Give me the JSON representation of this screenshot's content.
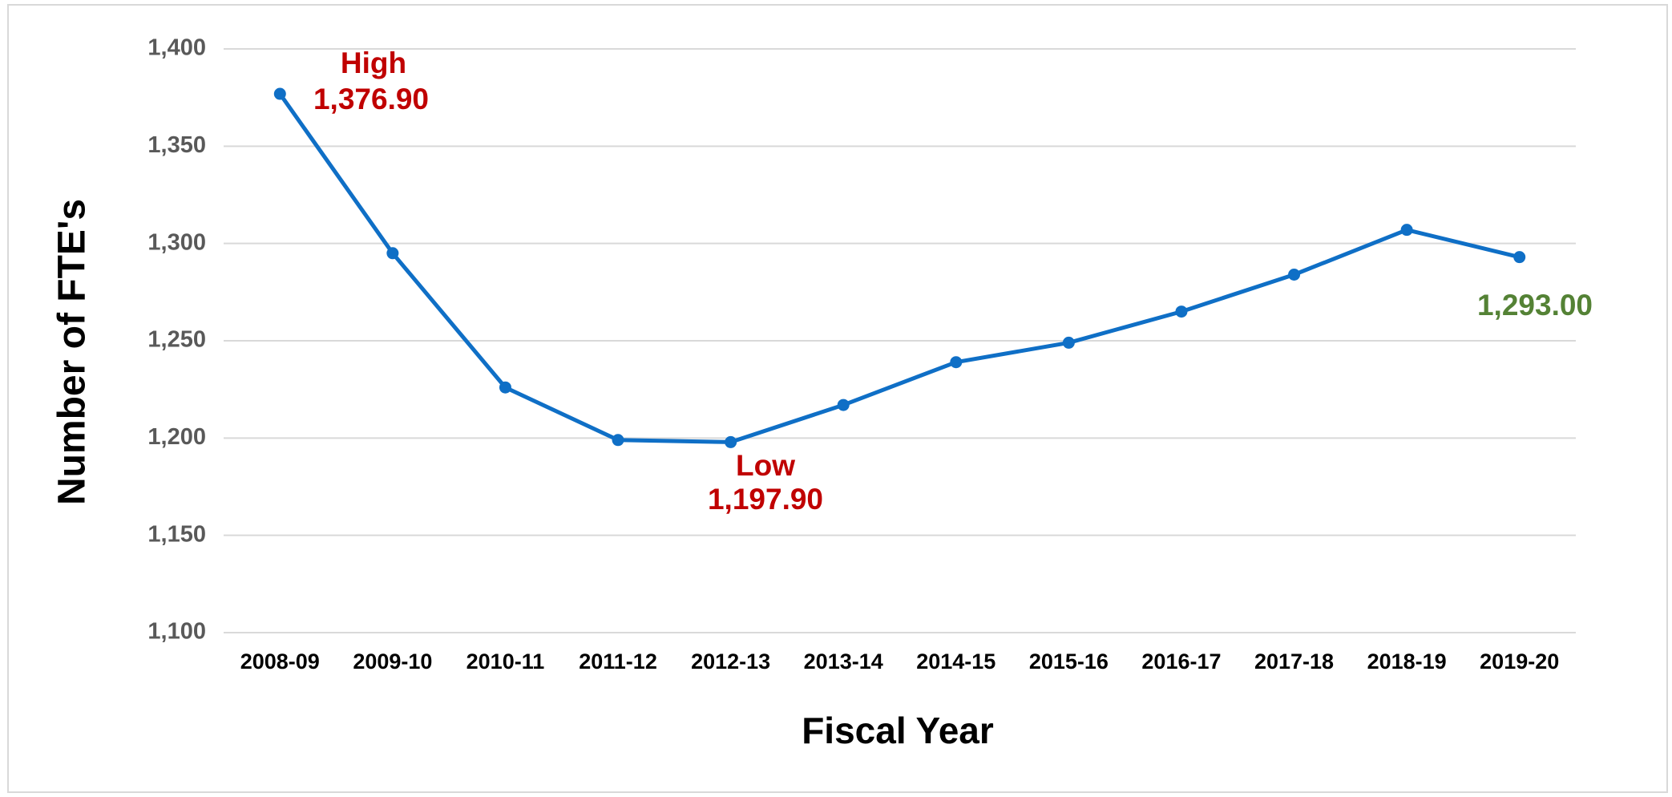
{
  "chart_data": {
    "type": "line",
    "x_label": "Fiscal Year",
    "y_label": "Number of FTE's",
    "categories": [
      "2008-09",
      "2009-10",
      "2010-11",
      "2011-12",
      "2012-13",
      "2013-14",
      "2014-15",
      "2015-16",
      "2016-17",
      "2017-18",
      "2018-19",
      "2019-20"
    ],
    "series": [
      {
        "color": "#0f6fc6",
        "values": [
          1376.9,
          1295,
          1226,
          1199,
          1197.9,
          1217,
          1239,
          1249,
          1265,
          1284,
          1307,
          1293
        ]
      }
    ],
    "value_labels": [
      "1,376.90",
      null,
      null,
      null,
      "1,197.90",
      null,
      null,
      null,
      null,
      null,
      null,
      "1,293.00"
    ],
    "value_label_colors": [
      "#c00000",
      null,
      null,
      null,
      "#c00000",
      null,
      null,
      null,
      null,
      null,
      null,
      "#548235"
    ],
    "annotations": [
      {
        "text": "High",
        "color": "#c00000"
      },
      {
        "text": "Low",
        "color": "#c00000"
      }
    ],
    "ylim": [
      1100,
      1400
    ],
    "yticks": [
      {
        "value": 1100,
        "label": "1,100"
      },
      {
        "value": 1150,
        "label": "1,150"
      },
      {
        "value": 1200,
        "label": "1,200"
      },
      {
        "value": 1250,
        "label": "1,250"
      },
      {
        "value": 1300,
        "label": "1,300"
      },
      {
        "value": 1350,
        "label": "1,350"
      },
      {
        "value": 1400,
        "label": "1,400"
      }
    ],
    "grid": true
  }
}
